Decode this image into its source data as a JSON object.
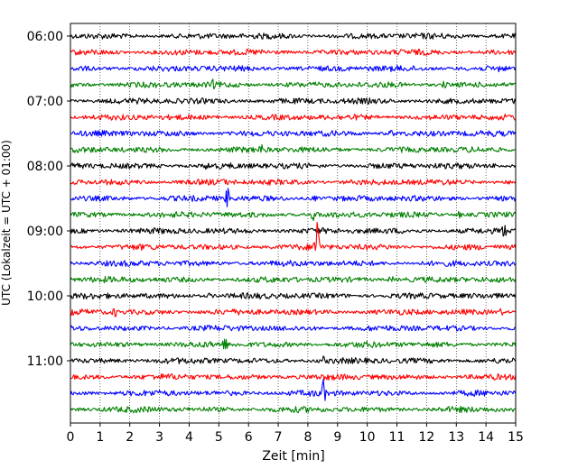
{
  "chart_data": {
    "type": "line",
    "xlabel": "Zeit  [min]",
    "ylabel": "UTC (Lokalzeit = UTC + 01:00)",
    "xlim": [
      0,
      15
    ],
    "xticks": [
      0,
      1,
      2,
      3,
      4,
      5,
      6,
      7,
      8,
      9,
      10,
      11,
      12,
      13,
      14,
      15
    ],
    "grid": "vertical-dotted",
    "trace_colors": [
      "#000000",
      "#ff0000",
      "#0000ff",
      "#008000"
    ],
    "rows": [
      {
        "time": "06:00",
        "color": "#000000"
      },
      {
        "time": "06:15",
        "color": "#ff0000"
      },
      {
        "time": "06:30",
        "color": "#0000ff",
        "events": [
          {
            "t": 14.5,
            "amp": 0.6
          }
        ]
      },
      {
        "time": "06:45",
        "color": "#008000",
        "events": [
          {
            "t": 4.8,
            "amp": 0.5
          },
          {
            "t": 12.6,
            "amp": 0.5
          }
        ]
      },
      {
        "time": "07:00",
        "color": "#000000"
      },
      {
        "time": "07:15",
        "color": "#ff0000",
        "events": [
          {
            "t": 4.9,
            "amp": 0.4
          }
        ]
      },
      {
        "time": "07:30",
        "color": "#0000ff",
        "events": [
          {
            "t": 10.8,
            "amp": 0.5
          }
        ]
      },
      {
        "time": "07:45",
        "color": "#008000",
        "events": [
          {
            "t": 6.4,
            "amp": 0.9
          }
        ]
      },
      {
        "time": "08:00",
        "color": "#000000",
        "events": [
          {
            "t": 4.6,
            "amp": 0.4
          },
          {
            "t": 14.3,
            "amp": 0.4
          }
        ]
      },
      {
        "time": "08:15",
        "color": "#ff0000",
        "events": [
          {
            "t": 5.1,
            "amp": 0.3
          }
        ]
      },
      {
        "time": "08:30",
        "color": "#0000ff",
        "events": [
          {
            "t": 5.3,
            "amp": 1.8
          },
          {
            "t": 8.2,
            "amp": 0.6
          }
        ]
      },
      {
        "time": "08:45",
        "color": "#008000",
        "events": [
          {
            "t": 8.2,
            "amp": 1.0
          },
          {
            "t": 13.1,
            "amp": 0.5
          }
        ]
      },
      {
        "time": "09:00",
        "color": "#000000",
        "events": [
          {
            "t": 14.6,
            "amp": 1.1
          }
        ]
      },
      {
        "time": "09:15",
        "color": "#ff0000",
        "events": [
          {
            "t": 8.3,
            "amp": 6.5
          }
        ]
      },
      {
        "time": "09:30",
        "color": "#0000ff"
      },
      {
        "time": "09:45",
        "color": "#008000",
        "events": [
          {
            "t": 10.8,
            "amp": 0.6
          }
        ]
      },
      {
        "time": "10:00",
        "color": "#000000",
        "events": [
          {
            "t": 4.7,
            "amp": 0.4
          }
        ]
      },
      {
        "time": "10:15",
        "color": "#ff0000",
        "events": [
          {
            "t": 1.5,
            "amp": 0.6
          },
          {
            "t": 14.5,
            "amp": 0.5
          }
        ]
      },
      {
        "time": "10:30",
        "color": "#0000ff"
      },
      {
        "time": "10:45",
        "color": "#008000",
        "events": [
          {
            "t": 5.2,
            "amp": 1.0
          },
          {
            "t": 10.1,
            "amp": 0.4
          }
        ]
      },
      {
        "time": "11:00",
        "color": "#000000",
        "events": [
          {
            "t": 8.5,
            "amp": 0.6
          }
        ]
      },
      {
        "time": "11:15",
        "color": "#ff0000"
      },
      {
        "time": "11:30",
        "color": "#0000ff",
        "events": [
          {
            "t": 8.5,
            "amp": 2.4
          }
        ]
      },
      {
        "time": "11:45",
        "color": "#008000"
      }
    ],
    "yticks": [
      "06:00",
      "07:00",
      "08:00",
      "09:00",
      "10:00",
      "11:00"
    ]
  }
}
